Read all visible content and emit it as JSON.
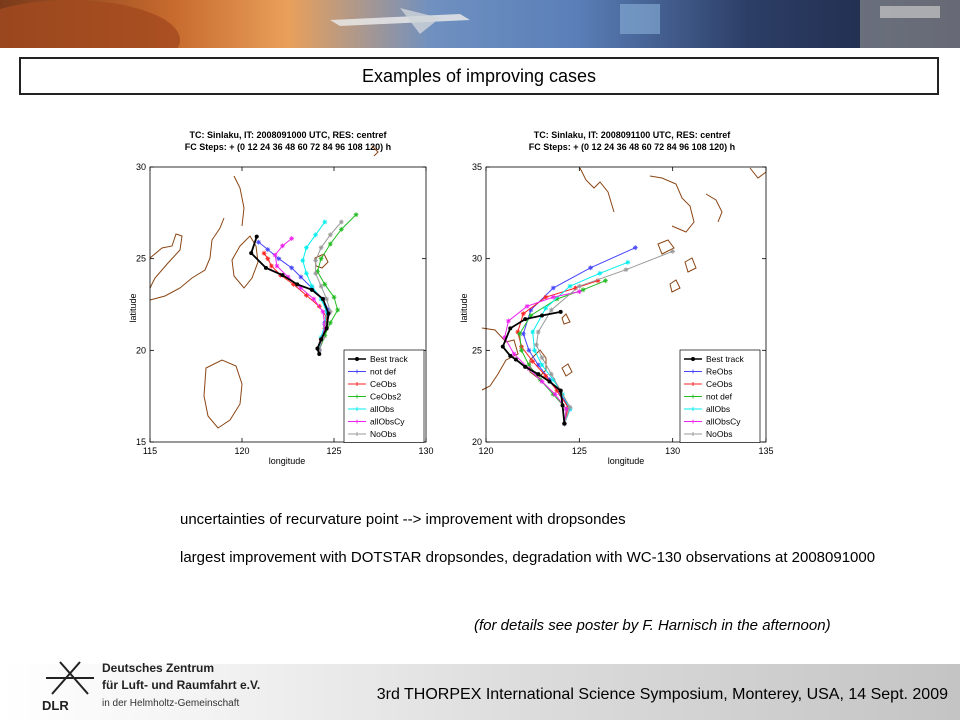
{
  "slide": {
    "title": "Examples of improving cases",
    "notes": [
      "uncertainties of recurvature point --> improvement with dropsondes",
      "largest improvement with DOTSTAR dropsondes, degradation with WC-130 observations at 2008091000"
    ],
    "details": "(for details see poster by F. Harnisch in the afternoon)",
    "footer": "3rd THORPEX International Science Symposium, Monterey, USA, 14 Sept. 2009",
    "logo": {
      "abbrev": "DLR",
      "lines": [
        "Deutsches Zentrum",
        "für Luft- und Raumfahrt e.V.",
        "in der Helmholtz-Gemeinschaft"
      ]
    },
    "colors": {
      "title_border": "#222222",
      "coast": "#8b4513",
      "footer_end": "#c4c4c4"
    }
  },
  "chart_data": [
    {
      "type": "line",
      "title": "TC: Sinlaku, IT: 2008091000 UTC, RES: centref",
      "subtitle": "FC Steps: + (0   12   24   36   48   60   72   84   96   108   120) h",
      "xlabel": "longitude",
      "ylabel": "latitude",
      "xlim": [
        115,
        130
      ],
      "ylim": [
        15,
        30
      ],
      "xticks": [
        115,
        120,
        125,
        130
      ],
      "yticks": [
        15,
        20,
        25,
        30
      ],
      "legend": "bottom-right",
      "series": [
        {
          "name": "Best track",
          "color": "#000000",
          "marker": "dot",
          "x": [
            120.8,
            120.5,
            121.3,
            122.2,
            123.0,
            123.8,
            124.4,
            124.7,
            124.6,
            124.3,
            124.1,
            124.2
          ],
          "y": [
            26.2,
            25.3,
            24.5,
            24.1,
            23.6,
            23.3,
            22.8,
            22.0,
            21.2,
            20.6,
            20.1,
            19.8
          ]
        },
        {
          "name": "not def",
          "color": "#4444ff",
          "marker": "star",
          "x": [
            124.2,
            124.4,
            124.5,
            124.7,
            124.4,
            123.8,
            123.2,
            122.7,
            122.0,
            121.4,
            120.9
          ],
          "y": [
            20.0,
            20.8,
            21.5,
            22.2,
            22.8,
            23.4,
            24.0,
            24.5,
            25.0,
            25.5,
            25.9
          ]
        },
        {
          "name": "CeObs",
          "color": "#ff2020",
          "marker": "star",
          "x": [
            124.2,
            124.3,
            124.5,
            124.6,
            124.2,
            123.5,
            122.8,
            122.1,
            121.6,
            121.4,
            121.2
          ],
          "y": [
            20.0,
            20.6,
            21.2,
            21.8,
            22.4,
            23.0,
            23.6,
            24.1,
            24.6,
            25.0,
            25.3
          ]
        },
        {
          "name": "CeObs2",
          "color": "#22bb22",
          "marker": "star",
          "x": [
            124.2,
            124.5,
            124.8,
            125.2,
            125.0,
            124.5,
            124.1,
            124.3,
            124.8,
            125.4,
            126.2
          ],
          "y": [
            20.0,
            20.8,
            21.5,
            22.2,
            22.9,
            23.6,
            24.3,
            25.0,
            25.8,
            26.6,
            27.4
          ]
        },
        {
          "name": "allObs",
          "color": "#00eeee",
          "marker": "star",
          "x": [
            124.2,
            124.3,
            124.5,
            124.6,
            124.3,
            123.8,
            123.5,
            123.3,
            123.5,
            124.0,
            124.5
          ],
          "y": [
            20.0,
            20.7,
            21.4,
            22.1,
            22.8,
            23.5,
            24.2,
            24.9,
            25.6,
            26.3,
            27.0
          ]
        },
        {
          "name": "allObsCy",
          "color": "#ee22ee",
          "marker": "star",
          "x": [
            124.2,
            124.4,
            124.5,
            124.4,
            123.9,
            123.2,
            122.5,
            121.9,
            121.8,
            122.2,
            122.7
          ],
          "y": [
            20.0,
            20.7,
            21.4,
            22.1,
            22.8,
            23.4,
            24.0,
            24.6,
            25.2,
            25.7,
            26.1
          ]
        },
        {
          "name": "NoObs",
          "color": "#999999",
          "marker": "star",
          "x": [
            124.2,
            124.4,
            124.6,
            124.8,
            124.6,
            124.3,
            124.0,
            124.0,
            124.3,
            124.8,
            125.4
          ],
          "y": [
            20.0,
            20.7,
            21.4,
            22.1,
            22.8,
            23.5,
            24.2,
            24.9,
            25.6,
            26.3,
            27.0
          ]
        }
      ]
    },
    {
      "type": "line",
      "title": "TC: Sinlaku, IT: 2008091100 UTC, RES: centref",
      "subtitle": "FC Steps: + (0   12   24   36   48   60   72   84   96   108   120) h",
      "xlabel": "longitude",
      "ylabel": "latitude",
      "xlim": [
        120,
        135
      ],
      "ylim": [
        20,
        35
      ],
      "xticks": [
        120,
        125,
        130,
        135
      ],
      "yticks": [
        20,
        25,
        30,
        35
      ],
      "legend": "bottom-right",
      "series": [
        {
          "name": "Best track",
          "color": "#000000",
          "marker": "dot",
          "x": [
            124.2,
            124.1,
            124.0,
            123.4,
            122.8,
            122.1,
            121.6,
            121.3,
            120.9,
            121.3,
            122.1,
            123.0,
            124.0
          ],
          "y": [
            21.0,
            22.0,
            22.8,
            23.3,
            23.7,
            24.1,
            24.5,
            24.7,
            25.2,
            26.2,
            26.7,
            26.9,
            27.1
          ]
        },
        {
          "name": "ReObs",
          "color": "#4444ff",
          "marker": "star",
          "x": [
            124.2,
            124.5,
            124.0,
            123.4,
            122.8,
            122.3,
            122.0,
            122.4,
            123.6,
            125.6,
            128.0
          ],
          "y": [
            21.0,
            21.8,
            22.6,
            23.4,
            24.2,
            25.0,
            25.9,
            27.2,
            28.4,
            29.5,
            30.6
          ]
        },
        {
          "name": "CeObs",
          "color": "#ff2020",
          "marker": "star",
          "x": [
            124.2,
            124.4,
            123.8,
            123.2,
            122.5,
            121.9,
            121.7,
            122.0,
            123.2,
            124.8,
            126.0
          ],
          "y": [
            21.0,
            21.9,
            22.8,
            23.6,
            24.4,
            25.2,
            26.0,
            27.0,
            27.9,
            28.4,
            28.8
          ]
        },
        {
          "name": "not def",
          "color": "#22bb22",
          "marker": "star",
          "x": [
            124.2,
            124.3,
            123.6,
            122.9,
            122.3,
            121.9,
            121.8,
            122.4,
            123.8,
            125.2,
            126.4
          ],
          "y": [
            21.0,
            21.8,
            22.6,
            23.4,
            24.2,
            25.0,
            25.9,
            26.9,
            27.8,
            28.3,
            28.8
          ]
        },
        {
          "name": "allObs",
          "color": "#00eeee",
          "marker": "star",
          "x": [
            124.2,
            124.5,
            124.1,
            123.6,
            123.0,
            122.6,
            122.5,
            123.2,
            124.5,
            126.1,
            127.6
          ],
          "y": [
            21.0,
            21.8,
            22.6,
            23.4,
            24.2,
            25.0,
            26.0,
            27.3,
            28.5,
            29.2,
            29.8
          ]
        },
        {
          "name": "allObsCy",
          "color": "#ee22ee",
          "marker": "star",
          "x": [
            124.2,
            124.3,
            123.7,
            123.0,
            122.3,
            121.5,
            121.0,
            121.2,
            122.2,
            123.6,
            125.0
          ],
          "y": [
            21.0,
            21.8,
            22.6,
            23.3,
            24.0,
            24.8,
            25.7,
            26.6,
            27.4,
            27.9,
            28.2
          ]
        },
        {
          "name": "NoObs",
          "color": "#999999",
          "marker": "star",
          "x": [
            124.2,
            124.5,
            124.0,
            123.5,
            123.0,
            122.7,
            122.8,
            123.5,
            125.0,
            127.5,
            130.0
          ],
          "y": [
            21.0,
            21.9,
            22.8,
            23.7,
            24.6,
            25.3,
            26.0,
            27.2,
            28.5,
            29.4,
            30.4
          ]
        }
      ]
    }
  ]
}
